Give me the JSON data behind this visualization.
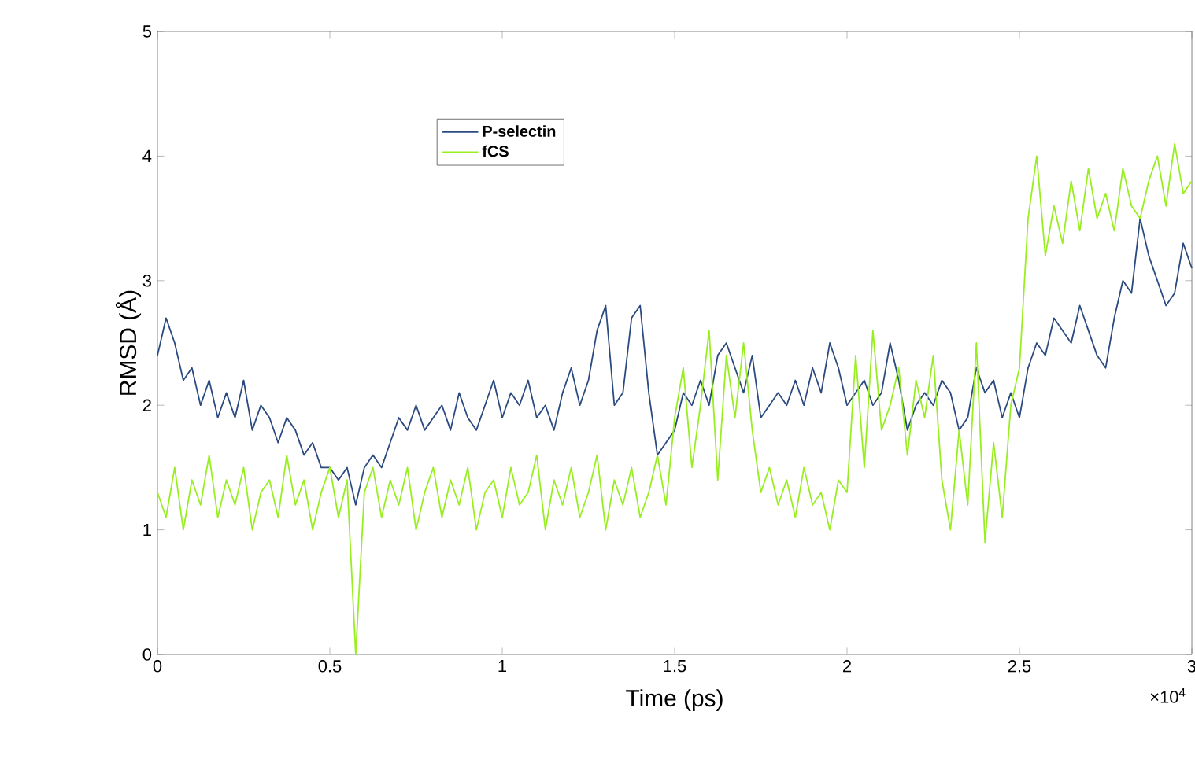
{
  "chart_data": {
    "type": "line",
    "xlabel": "Time (ps)",
    "ylabel": "RMSD (Å)",
    "x": [
      0,
      0.025,
      0.05,
      0.075,
      0.1,
      0.125,
      0.15,
      0.175,
      0.2,
      0.225,
      0.25,
      0.275,
      0.3,
      0.325,
      0.35,
      0.375,
      0.4,
      0.425,
      0.45,
      0.475,
      0.5,
      0.525,
      0.55,
      0.575,
      0.6,
      0.625,
      0.65,
      0.675,
      0.7,
      0.725,
      0.75,
      0.775,
      0.8,
      0.825,
      0.85,
      0.875,
      0.9,
      0.925,
      0.95,
      0.975,
      1,
      1.025,
      1.05,
      1.075,
      1.1,
      1.125,
      1.15,
      1.175,
      1.2,
      1.225,
      1.25,
      1.275,
      1.3,
      1.325,
      1.35,
      1.375,
      1.4,
      1.425,
      1.45,
      1.475,
      1.5,
      1.525,
      1.55,
      1.575,
      1.6,
      1.625,
      1.65,
      1.675,
      1.7,
      1.725,
      1.75,
      1.775,
      1.8,
      1.825,
      1.85,
      1.875,
      1.9,
      1.925,
      1.95,
      1.975,
      2,
      2.025,
      2.05,
      2.075,
      2.1,
      2.125,
      2.15,
      2.175,
      2.2,
      2.225,
      2.25,
      2.275,
      2.3,
      2.325,
      2.35,
      2.375,
      2.4,
      2.425,
      2.45,
      2.475,
      2.5,
      2.525,
      2.55,
      2.575,
      2.6,
      2.625,
      2.65,
      2.675,
      2.7,
      2.725,
      2.75,
      2.775,
      2.8,
      2.825,
      2.85,
      2.875,
      2.9,
      2.925,
      2.95,
      2.975,
      3
    ],
    "series": [
      {
        "name": "P-selectin",
        "color": "#2b4a80",
        "values": [
          2.4,
          2.7,
          2.5,
          2.2,
          2.3,
          2.0,
          2.2,
          1.9,
          2.1,
          1.9,
          2.2,
          1.8,
          2.0,
          1.9,
          1.7,
          1.9,
          1.8,
          1.6,
          1.7,
          1.5,
          1.5,
          1.4,
          1.5,
          1.2,
          1.5,
          1.6,
          1.5,
          1.7,
          1.9,
          1.8,
          2.0,
          1.8,
          1.9,
          2.0,
          1.8,
          2.1,
          1.9,
          1.8,
          2.0,
          2.2,
          1.9,
          2.1,
          2.0,
          2.2,
          1.9,
          2.0,
          1.8,
          2.1,
          2.3,
          2.0,
          2.2,
          2.6,
          2.8,
          2.0,
          2.1,
          2.7,
          2.8,
          2.1,
          1.6,
          1.7,
          1.8,
          2.1,
          2.0,
          2.2,
          2.0,
          2.4,
          2.5,
          2.3,
          2.1,
          2.4,
          1.9,
          2.0,
          2.1,
          2.0,
          2.2,
          2.0,
          2.3,
          2.1,
          2.5,
          2.3,
          2.0,
          2.1,
          2.2,
          2.0,
          2.1,
          2.5,
          2.2,
          1.8,
          2.0,
          2.1,
          2.0,
          2.2,
          2.1,
          1.8,
          1.9,
          2.3,
          2.1,
          2.2,
          1.9,
          2.1,
          1.9,
          2.3,
          2.5,
          2.4,
          2.7,
          2.6,
          2.5,
          2.8,
          2.6,
          2.4,
          2.3,
          2.7,
          3.0,
          2.9,
          3.5,
          3.2,
          3.0,
          2.8,
          2.9,
          3.3,
          3.1
        ]
      },
      {
        "name": "fCS",
        "color": "#99ee22",
        "values": [
          1.3,
          1.1,
          1.5,
          1.0,
          1.4,
          1.2,
          1.6,
          1.1,
          1.4,
          1.2,
          1.5,
          1.0,
          1.3,
          1.4,
          1.1,
          1.6,
          1.2,
          1.4,
          1.0,
          1.3,
          1.5,
          1.1,
          1.4,
          0,
          1.3,
          1.5,
          1.1,
          1.4,
          1.2,
          1.5,
          1.0,
          1.3,
          1.5,
          1.1,
          1.4,
          1.2,
          1.5,
          1.0,
          1.3,
          1.4,
          1.1,
          1.5,
          1.2,
          1.3,
          1.6,
          1.0,
          1.4,
          1.2,
          1.5,
          1.1,
          1.3,
          1.6,
          1.0,
          1.4,
          1.2,
          1.5,
          1.1,
          1.3,
          1.6,
          1.2,
          1.9,
          2.3,
          1.5,
          2.0,
          2.6,
          1.4,
          2.4,
          1.9,
          2.5,
          1.8,
          1.3,
          1.5,
          1.2,
          1.4,
          1.1,
          1.5,
          1.2,
          1.3,
          1.0,
          1.4,
          1.3,
          2.4,
          1.5,
          2.6,
          1.8,
          2.0,
          2.3,
          1.6,
          2.2,
          1.9,
          2.4,
          1.4,
          1.0,
          1.8,
          1.2,
          2.5,
          0.9,
          1.7,
          1.1,
          2.0,
          2.3,
          3.5,
          4.0,
          3.2,
          3.6,
          3.3,
          3.8,
          3.4,
          3.9,
          3.5,
          3.7,
          3.4,
          3.9,
          3.6,
          3.5,
          3.8,
          4.0,
          3.6,
          4.1,
          3.7,
          3.8
        ]
      }
    ],
    "xlim": [
      0,
      3
    ],
    "ylim": [
      0,
      5
    ],
    "xticks": [
      0,
      0.5,
      1,
      1.5,
      2,
      2.5,
      3
    ],
    "yticks": [
      0,
      1,
      2,
      3,
      4,
      5
    ],
    "annotations": [
      "×10$^{4}$"
    ],
    "legend": "top left",
    "grid": false,
    "marker": "none",
    "line_style": "solid"
  }
}
